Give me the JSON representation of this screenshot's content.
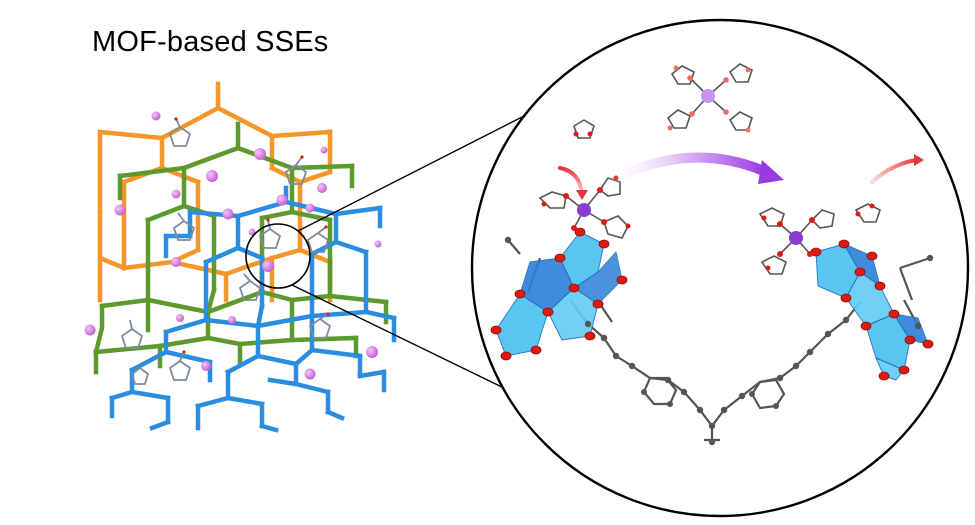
{
  "figure": {
    "title": "MOF-based SSEs",
    "framework_colors": {
      "orange": "#f5962a",
      "green": "#5d9a2d",
      "blue": "#2a8de0",
      "lithium_ion": "#cc66dd",
      "solvent_molecule": "#7f8b9e"
    },
    "zoom_panel_colors": {
      "oxygen": "#e01a10",
      "carbon": "#555555",
      "polyhedron": "#48bff0",
      "polyhedron_dark": "#2c7fd8",
      "lithium": "#8a3bd1",
      "migration_arrow": "#9b39e0",
      "release_arrow": "#e8343a"
    }
  }
}
